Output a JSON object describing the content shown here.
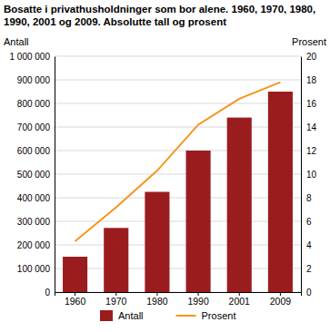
{
  "chart_data": {
    "type": "bar",
    "title": "Bosatte i privathusholdninger som bor alene. 1960, 1970, 1980, 1990, 2001 og 2009. Absolutte tall og prosent",
    "ylabel": "Antall",
    "y2label": "Prosent",
    "categories": [
      "1960",
      "1970",
      "1980",
      "1990",
      "2001",
      "2009"
    ],
    "series": [
      {
        "name": "Antall",
        "type": "bar",
        "color": "#9b1c1f",
        "values": [
          150000,
          272000,
          425000,
          600000,
          740000,
          850000
        ]
      },
      {
        "name": "Prosent",
        "type": "line",
        "color": "#f7941d",
        "axis": "y2",
        "values": [
          4.3,
          7.2,
          10.3,
          14.2,
          16.4,
          17.8
        ]
      }
    ],
    "ylim": [
      0,
      1000000
    ],
    "yticks": [
      0,
      {
        "value": 100000,
        "label": "100 000"
      },
      {
        "value": 200000,
        "label": "200 000"
      },
      {
        "value": 300000,
        "label": "300 000"
      },
      {
        "value": 400000,
        "label": "400 000"
      },
      {
        "value": 500000,
        "label": "500 000"
      },
      {
        "value": 600000,
        "label": "600 000"
      },
      {
        "value": 700000,
        "label": "700 000"
      },
      {
        "value": 800000,
        "label": "800 000"
      },
      {
        "value": 900000,
        "label": "900 000"
      },
      {
        "value": 1000000,
        "label": "1 000 000"
      }
    ],
    "y2lim": [
      0,
      20
    ],
    "y2ticks": [
      0,
      2,
      4,
      6,
      8,
      10,
      12,
      14,
      16,
      18,
      20
    ],
    "grid": true,
    "legend": "bottom"
  }
}
